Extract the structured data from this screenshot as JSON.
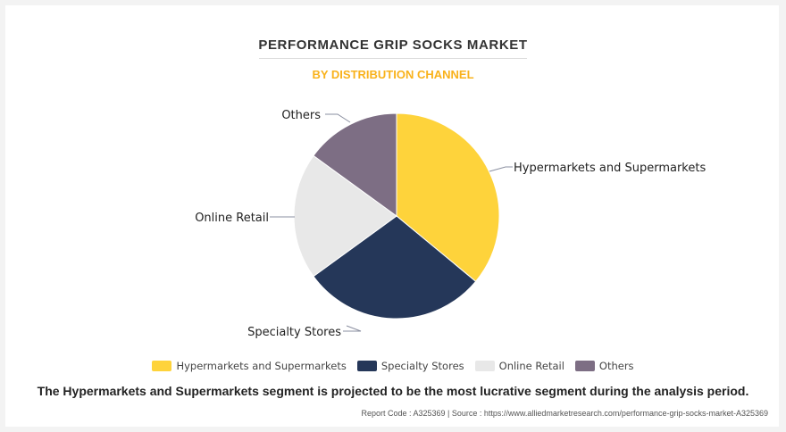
{
  "title": "PERFORMANCE GRIP SOCKS MARKET",
  "subtitle": "BY DISTRIBUTION CHANNEL",
  "headline": "The Hypermarkets and Supermarkets segment is projected to be the most lucrative segment during the analysis period.",
  "source": "Report Code : A325369  |  Source : https://www.alliedmarketresearch.com/performance-grip-socks-market-A325369",
  "colors": {
    "title": "#333333",
    "subtitle": "#f9b21b"
  },
  "chart_data": {
    "type": "pie",
    "title": "PERFORMANCE GRIP SOCKS MARKET",
    "subtitle": "BY DISTRIBUTION CHANNEL",
    "legend_position": "bottom",
    "slices": [
      {
        "label": "Hypermarkets and Supermarkets",
        "value": 36,
        "color": "#fed33b"
      },
      {
        "label": "Specialty Stores",
        "value": 29,
        "color": "#253759"
      },
      {
        "label": "Online Retail",
        "value": 20,
        "color": "#e8e8e8"
      },
      {
        "label": "Others",
        "value": 15,
        "color": "#7d6e84"
      }
    ]
  }
}
